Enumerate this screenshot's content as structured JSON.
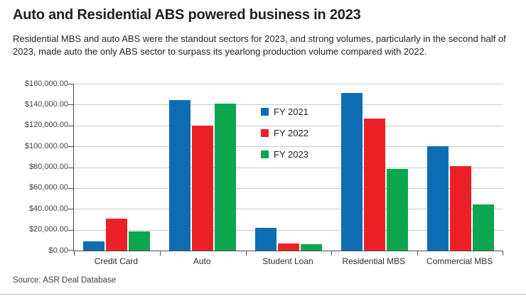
{
  "chart_data": {
    "type": "bar",
    "title": "Auto and Residential ABS powered business in 2023",
    "subtitle": "Residential MBS and auto ABS were the standout sectors for 2023, and strong volumes, particularly in the second half of 2023, made auto the only ABS sector to surpass its yearlong production volume compared with 2022.",
    "source": "Source: ASR Deal Database",
    "categories": [
      "Credit Card",
      "Auto",
      "Student Loan",
      "Residential MBS",
      "Commercial MBS"
    ],
    "series": [
      {
        "name": "FY 2021",
        "color": "#0e6cb3",
        "values": [
          9000,
          144500,
          22000,
          151500,
          100000
        ]
      },
      {
        "name": "FY 2022",
        "color": "#ec2127",
        "values": [
          31000,
          120000,
          7000,
          127000,
          81000
        ]
      },
      {
        "name": "FY 2023",
        "color": "#0ca64f",
        "values": [
          18500,
          141000,
          6500,
          78000,
          44500
        ]
      }
    ],
    "y_ticks": [
      "$160,000.00",
      "$140,000.00",
      "$120,000.00",
      "$100,000.00",
      "$80,000.00",
      "$60,000.00",
      "$40,000.00",
      "$20,000.00",
      "$0.00"
    ],
    "ylim": [
      0,
      160000
    ],
    "y_tick_step": 20000,
    "xlabel": "",
    "ylabel": "",
    "grid": true,
    "grid_color": "#c9c9c9",
    "axis_color": "#4d4d4d",
    "legend_position": "inside-upper-middle"
  }
}
